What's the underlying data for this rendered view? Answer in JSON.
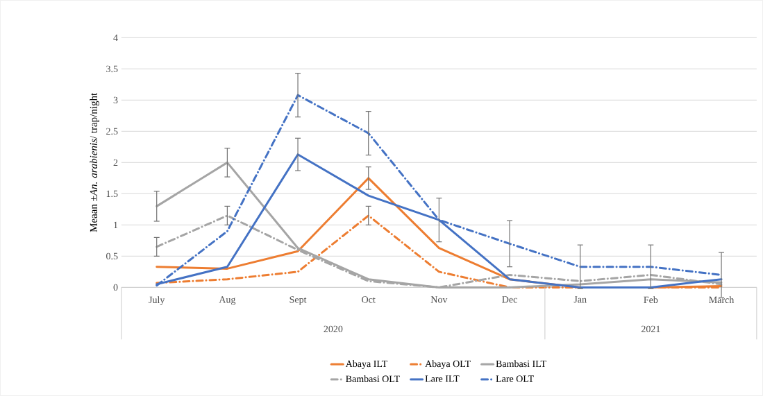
{
  "chart_data": {
    "type": "line",
    "ylabel": "Meaan ±*An. arabienis*/ trap/night",
    "categories": [
      "July",
      "Aug",
      "Sept",
      "Oct",
      "Nov",
      "Dec",
      "Jan",
      "Feb",
      "March"
    ],
    "annotations": [
      "2020",
      "2021"
    ],
    "ylim": [
      0,
      4
    ],
    "yticks": [
      0,
      0.5,
      1,
      1.5,
      2,
      2.5,
      3,
      3.5,
      4
    ],
    "grid": "y",
    "legend": "bottom",
    "marker": "none",
    "series": [
      {
        "name": "Abaya ILT",
        "color": "#ed7d31",
        "line_style": "solid",
        "values": [
          0.33,
          0.3,
          0.58,
          1.75,
          0.63,
          0.13,
          0,
          0,
          0.02
        ],
        "errors": [
          null,
          null,
          null,
          0.18,
          null,
          null,
          null,
          null,
          null
        ]
      },
      {
        "name": "Abaya OLT",
        "color": "#ed7d31",
        "line_style": "dashed",
        "values": [
          0.07,
          0.13,
          0.25,
          1.15,
          0.25,
          0,
          0,
          0,
          0
        ],
        "errors": [
          null,
          null,
          null,
          0.15,
          null,
          null,
          null,
          null,
          null
        ]
      },
      {
        "name": "Bambasi ILT",
        "color": "#a5a5a5",
        "line_style": "solid",
        "values": [
          1.3,
          2.0,
          0.63,
          0.13,
          0,
          0,
          0.05,
          0.13,
          0.08
        ],
        "errors": [
          0.24,
          0.23,
          null,
          null,
          null,
          null,
          null,
          null,
          null
        ]
      },
      {
        "name": "Bambasi OLT",
        "color": "#a5a5a5",
        "line_style": "dashed",
        "values": [
          0.65,
          1.15,
          0.6,
          0.1,
          0,
          0.2,
          0.1,
          0.2,
          0.05
        ],
        "errors": [
          0.15,
          0.15,
          null,
          null,
          null,
          null,
          null,
          null,
          null
        ]
      },
      {
        "name": "Lare ILT",
        "color": "#4472c4",
        "line_style": "solid",
        "values": [
          0.05,
          0.33,
          2.13,
          1.47,
          1.08,
          0.13,
          0,
          0,
          0.13
        ],
        "errors": [
          null,
          null,
          0.26,
          null,
          null,
          null,
          null,
          null,
          null
        ]
      },
      {
        "name": "Lare OLT",
        "color": "#4472c4",
        "line_style": "dashed",
        "values": [
          0.03,
          0.9,
          3.08,
          2.47,
          1.08,
          0.7,
          0.33,
          0.33,
          0.2
        ],
        "errors": [
          null,
          null,
          0.35,
          0.35,
          0.35,
          0.37,
          0.35,
          0.35,
          0.36
        ]
      }
    ]
  }
}
